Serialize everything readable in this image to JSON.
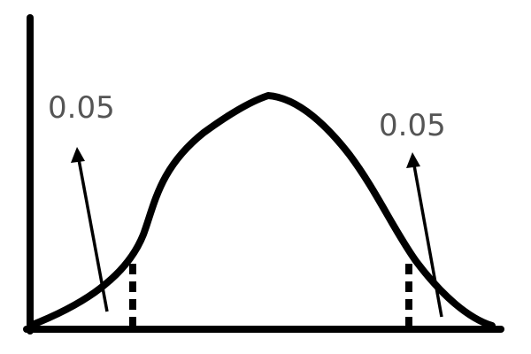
{
  "diagram": {
    "left_tail": {
      "label": "0.05"
    },
    "right_tail": {
      "label": "0.05"
    }
  },
  "colors": {
    "stroke": "#000000",
    "label": "#555555",
    "background": "#ffffff"
  }
}
